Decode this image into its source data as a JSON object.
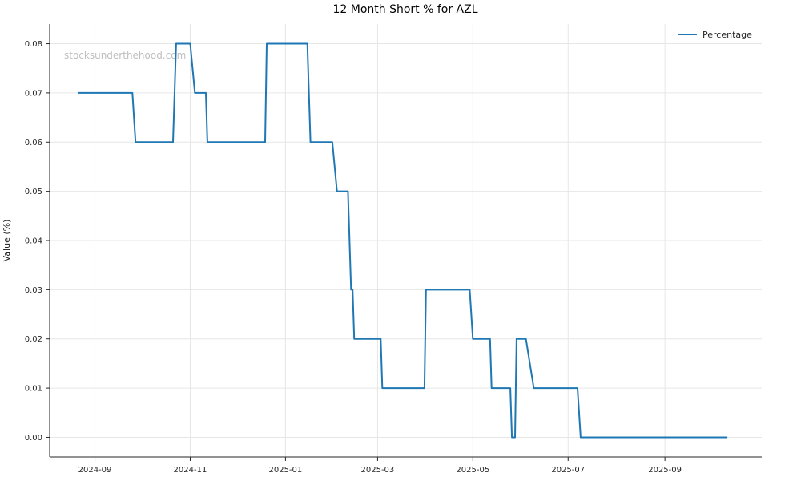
{
  "title": "12 Month Short % for AZL",
  "watermark": "stocksunderthehood.com",
  "legend": {
    "label": "Percentage"
  },
  "chart_data": {
    "type": "line",
    "title": "12 Month Short % for AZL",
    "xlabel": "",
    "ylabel": "Value (%)",
    "grid": true,
    "legend_position": "upper right",
    "line_color": "#1f77b4",
    "grid_color": "#e6e6e6",
    "spine_color": "#262626",
    "x_range": [
      "2024-08-03",
      "2025-11-02"
    ],
    "y_range": [
      -0.004,
      0.084
    ],
    "x_ticks": [
      {
        "date": "2024-09-01",
        "label": "2024-09"
      },
      {
        "date": "2024-11-01",
        "label": "2024-11"
      },
      {
        "date": "2025-01-01",
        "label": "2025-01"
      },
      {
        "date": "2025-03-01",
        "label": "2025-03"
      },
      {
        "date": "2025-05-01",
        "label": "2025-05"
      },
      {
        "date": "2025-07-01",
        "label": "2025-07"
      },
      {
        "date": "2025-09-01",
        "label": "2025-09"
      }
    ],
    "y_ticks": [
      {
        "value": 0.0,
        "label": "0.00"
      },
      {
        "value": 0.01,
        "label": "0.01"
      },
      {
        "value": 0.02,
        "label": "0.02"
      },
      {
        "value": 0.03,
        "label": "0.03"
      },
      {
        "value": 0.04,
        "label": "0.04"
      },
      {
        "value": 0.05,
        "label": "0.05"
      },
      {
        "value": 0.06,
        "label": "0.06"
      },
      {
        "value": 0.07,
        "label": "0.07"
      },
      {
        "value": 0.08,
        "label": "0.08"
      }
    ],
    "series": [
      {
        "name": "Percentage",
        "color": "#1f77b4",
        "points": [
          [
            "2024-08-21",
            0.07
          ],
          [
            "2024-09-25",
            0.07
          ],
          [
            "2024-09-27",
            0.06
          ],
          [
            "2024-10-21",
            0.06
          ],
          [
            "2024-10-23",
            0.08
          ],
          [
            "2024-11-01",
            0.08
          ],
          [
            "2024-11-04",
            0.07
          ],
          [
            "2024-11-11",
            0.07
          ],
          [
            "2024-11-12",
            0.06
          ],
          [
            "2024-12-19",
            0.06
          ],
          [
            "2024-12-20",
            0.08
          ],
          [
            "2025-01-15",
            0.08
          ],
          [
            "2025-01-17",
            0.06
          ],
          [
            "2025-01-31",
            0.06
          ],
          [
            "2025-02-03",
            0.05
          ],
          [
            "2025-02-10",
            0.05
          ],
          [
            "2025-02-12",
            0.03
          ],
          [
            "2025-02-13",
            0.03
          ],
          [
            "2025-02-14",
            0.02
          ],
          [
            "2025-03-03",
            0.02
          ],
          [
            "2025-03-04",
            0.01
          ],
          [
            "2025-03-31",
            0.01
          ],
          [
            "2025-04-01",
            0.03
          ],
          [
            "2025-04-29",
            0.03
          ],
          [
            "2025-05-01",
            0.02
          ],
          [
            "2025-05-12",
            0.02
          ],
          [
            "2025-05-13",
            0.01
          ],
          [
            "2025-05-25",
            0.01
          ],
          [
            "2025-05-26",
            0.0
          ],
          [
            "2025-05-28",
            0.0
          ],
          [
            "2025-05-29",
            0.02
          ],
          [
            "2025-06-04",
            0.02
          ],
          [
            "2025-06-09",
            0.01
          ],
          [
            "2025-07-07",
            0.01
          ],
          [
            "2025-07-09",
            0.0
          ],
          [
            "2025-10-11",
            0.0
          ]
        ]
      }
    ]
  }
}
